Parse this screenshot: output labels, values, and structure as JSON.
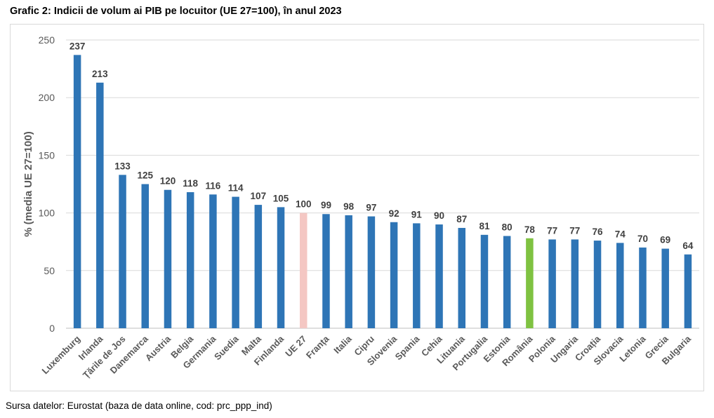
{
  "title": "Grafic 2: Indicii de volum ai PIB pe locuitor  (UE 27=100), în anul 2023",
  "source": "Sursa datelor: Eurostat (baza de data online, cod: prc_ppp_ind)",
  "chart_data": {
    "type": "bar",
    "title": "Grafic 2: Indicii de volum ai PIB pe locuitor  (UE 27=100), în anul 2023",
    "xlabel": "",
    "ylabel": "% (media UE 27=100)",
    "ylim": [
      0,
      250
    ],
    "yticks": [
      0,
      50,
      100,
      150,
      200,
      250
    ],
    "grid": true,
    "legend": "none",
    "categories": [
      "Luxemburg",
      "Irlanda",
      "Țările de Jos",
      "Danemarca",
      "Austria",
      "Belgia",
      "Germania",
      "Suedia",
      "Malta",
      "Finlanda",
      "UE 27",
      "Franța",
      "Italia",
      "Cipru",
      "Slovenia",
      "Spania",
      "Cehia",
      "Lituania",
      "Portugalia",
      "Estonia",
      "România",
      "Polonia",
      "Ungaria",
      "Croația",
      "Slovacia",
      "Letonia",
      "Grecia",
      "Bulgaria"
    ],
    "values": [
      237,
      213,
      133,
      125,
      120,
      118,
      116,
      114,
      107,
      105,
      100,
      99,
      98,
      97,
      92,
      91,
      90,
      87,
      81,
      80,
      78,
      77,
      77,
      76,
      74,
      70,
      69,
      64
    ],
    "colors": {
      "default": "#2e75b6",
      "highlight": {
        "UE 27": "#f4c7c3",
        "România": "#7fc241"
      }
    }
  }
}
